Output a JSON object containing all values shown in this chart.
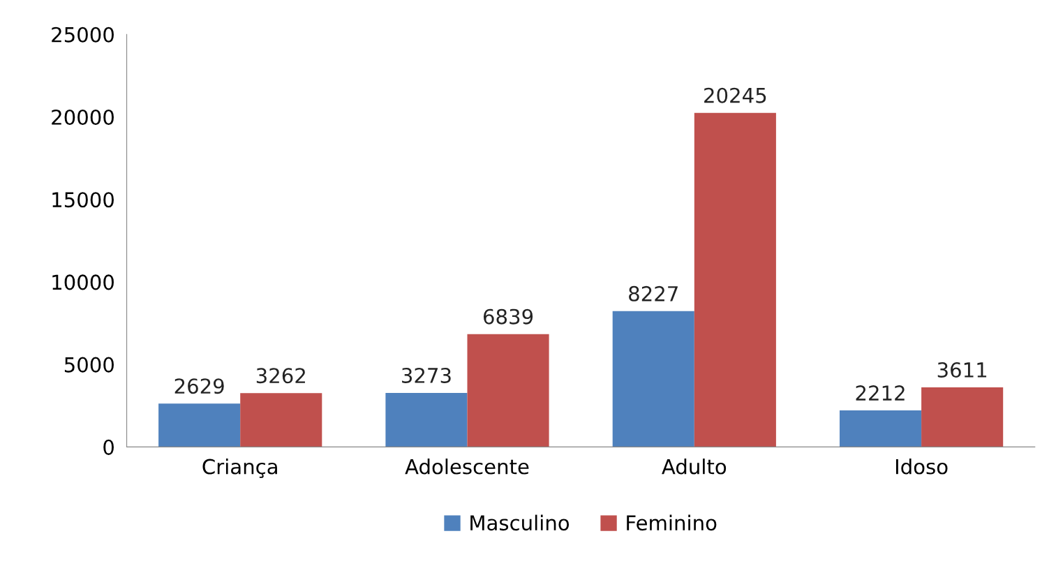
{
  "chart_data": {
    "type": "bar",
    "categories": [
      "Criança",
      "Adolescente",
      "Adulto",
      "Idoso"
    ],
    "series": [
      {
        "name": "Masculino",
        "color": "#4f81bd",
        "values": [
          2629,
          3273,
          8227,
          2212
        ]
      },
      {
        "name": "Feminino",
        "color": "#c0504d",
        "values": [
          3262,
          6839,
          20245,
          3611
        ]
      }
    ],
    "ylim": [
      0,
      25000
    ],
    "yticks": [
      0,
      5000,
      10000,
      15000,
      20000,
      25000
    ],
    "data_labels": true,
    "grid": false,
    "legend": "bottom"
  }
}
